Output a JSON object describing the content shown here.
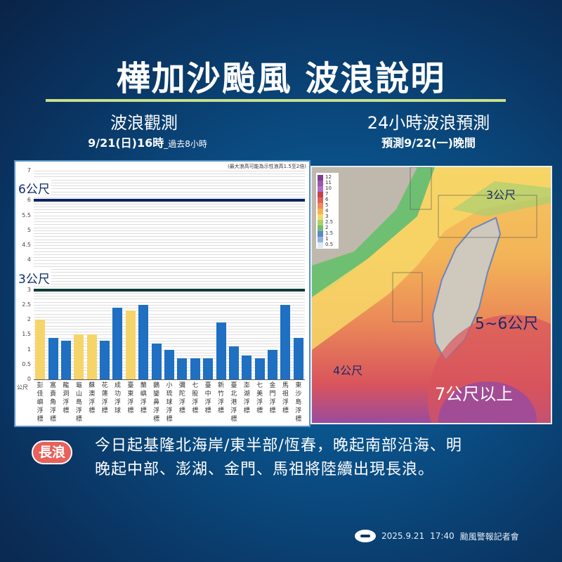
{
  "header": {
    "title": "樺加沙颱風 波浪說明",
    "left_heading": "波浪觀測",
    "left_subheading": "9/21(日)16時",
    "left_subheading_note": "_過去8小時",
    "right_heading": "24小時波浪預測",
    "right_subheading": "預測9/22(一)晚間"
  },
  "colors": {
    "accent_rule": "#c8e08a",
    "bar_blue": "#1f6fc2",
    "bar_yellow": "#f5d56a",
    "line_6m": "#0d2463",
    "line_3m": "#0f3b36",
    "badge_red": "#e8615a"
  },
  "chart_data": {
    "type": "bar",
    "title": "波浪觀測",
    "note": "(最大浪高可能為示性浪高1.5至2倍)",
    "ylabel": "公尺",
    "xlabel": "",
    "ylim": [
      0,
      7
    ],
    "yticks": [
      "0",
      "0.5",
      "1",
      "1.5",
      "2",
      "2.5",
      "3",
      "4",
      "4.5",
      "5",
      "5.5",
      "6",
      "7"
    ],
    "grid": true,
    "reference_lines": [
      {
        "value": 6,
        "label": "6公尺",
        "color": "#0d2463"
      },
      {
        "value": 3,
        "label": "3公尺",
        "color": "#0f3b36"
      }
    ],
    "categories": [
      "彭佳嶼浮標",
      "富貴角浮標",
      "龍洞浮標",
      "龜山島浮標",
      "蘇澳浮標",
      "花蓮浮標",
      "成功浮球",
      "臺東浮標",
      "蘭嶼浮標",
      "鵝鑾鼻浮標",
      "小琉球浮標",
      "彌陀浮標",
      "七股浮標",
      "臺中浮標",
      "新竹浮標",
      "臺北港浮標",
      "澎湖浮標",
      "七美浮標",
      "金門浮標",
      "馬祖浮標",
      "東沙島浮標"
    ],
    "values": [
      2.0,
      1.4,
      1.3,
      1.5,
      1.5,
      1.3,
      2.4,
      2.3,
      2.5,
      1.2,
      1.0,
      0.7,
      0.7,
      0.7,
      1.9,
      1.1,
      0.8,
      0.7,
      1.0,
      2.5,
      1.4
    ],
    "bar_colors": [
      "yellow",
      "blue",
      "blue",
      "yellow",
      "yellow",
      "blue",
      "blue",
      "yellow",
      "blue",
      "blue",
      "blue",
      "blue",
      "blue",
      "blue",
      "blue",
      "blue",
      "blue",
      "blue",
      "blue",
      "blue",
      "blue"
    ]
  },
  "forecast_map": {
    "legend": [
      "12",
      "11",
      "10",
      "7",
      "6",
      "5",
      "4",
      "3",
      "2.5",
      "2",
      "1.5",
      "1",
      "0.5"
    ],
    "legend_colors": [
      "#7b3f8f",
      "#9a58b0",
      "#b070c2",
      "#c4424f",
      "#e0605e",
      "#ee8a60",
      "#f3b457",
      "#f7d767",
      "#a8d070",
      "#6fbf73",
      "#5e88c8",
      "#8fb2e0",
      "#dde8f6"
    ],
    "labels": [
      {
        "text": "3公尺",
        "pos": "north"
      },
      {
        "text": "5~6公尺",
        "pos": "east"
      },
      {
        "text": "4公尺",
        "pos": "southwest"
      },
      {
        "text": "7公尺以上",
        "pos": "south"
      }
    ]
  },
  "bulletin": {
    "badge": "長浪",
    "line1": "今日起基隆北海岸/東半部/恆春，晚起南部沿海、明",
    "line2": "晚起中部、澎湖、金門、馬祖將陸續出現長浪。"
  },
  "footer": {
    "date": "2025.9.21",
    "time": "17:40",
    "event": "颱風警報記者會"
  }
}
